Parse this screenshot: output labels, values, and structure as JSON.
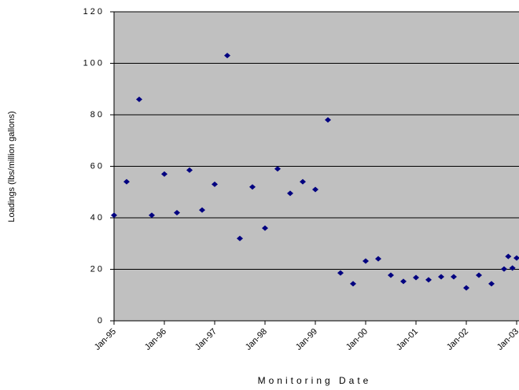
{
  "chart_data": {
    "type": "scatter",
    "x_label": "Monitoring Date",
    "y_label": "Loadings (lbs/million gallons)",
    "x": [
      "1995-01",
      "1995-04",
      "1995-07",
      "1995-10",
      "1996-01",
      "1996-04",
      "1996-07",
      "1996-10",
      "1997-01",
      "1997-04",
      "1997-07",
      "1997-10",
      "1998-01",
      "1998-04",
      "1998-07",
      "1998-10",
      "1999-01",
      "1999-04",
      "1999-07",
      "1999-10",
      "2000-01",
      "2000-04",
      "2000-07",
      "2000-10",
      "2001-01",
      "2001-04",
      "2001-07",
      "2001-10",
      "2002-01",
      "2002-04",
      "2002-07",
      "2002-10",
      "2002-11",
      "2002-12",
      "2003-01"
    ],
    "values": [
      41,
      54,
      86,
      41,
      57,
      42,
      58.5,
      43,
      53,
      103,
      32,
      52,
      36,
      59,
      49.5,
      54,
      51,
      78,
      18.6,
      14.4,
      23.2,
      24.1,
      17.7,
      15.3,
      16.8,
      15.9,
      17.1,
      17.1,
      12.8,
      17.7,
      14.4,
      20.1,
      25,
      20.5,
      24.4
    ],
    "color": "#000080",
    "plot_background": "#c0c0c0",
    "xlim": [
      "1995-01",
      "2003-01"
    ],
    "xticks": [
      {
        "value": "1995-01",
        "label": "Jan-95"
      },
      {
        "value": "1996-01",
        "label": "Jan-96"
      },
      {
        "value": "1997-01",
        "label": "Jan-97"
      },
      {
        "value": "1998-01",
        "label": "Jan-98"
      },
      {
        "value": "1999-01",
        "label": "Jan-99"
      },
      {
        "value": "2000-01",
        "label": "Jan-00"
      },
      {
        "value": "2001-01",
        "label": "Jan-01"
      },
      {
        "value": "2002-01",
        "label": "Jan-02"
      },
      {
        "value": "2003-01",
        "label": "Jan-03"
      }
    ],
    "ylim": [
      0,
      120
    ],
    "yticks": [
      0,
      20,
      40,
      60,
      80,
      100,
      120
    ],
    "grid": true
  }
}
